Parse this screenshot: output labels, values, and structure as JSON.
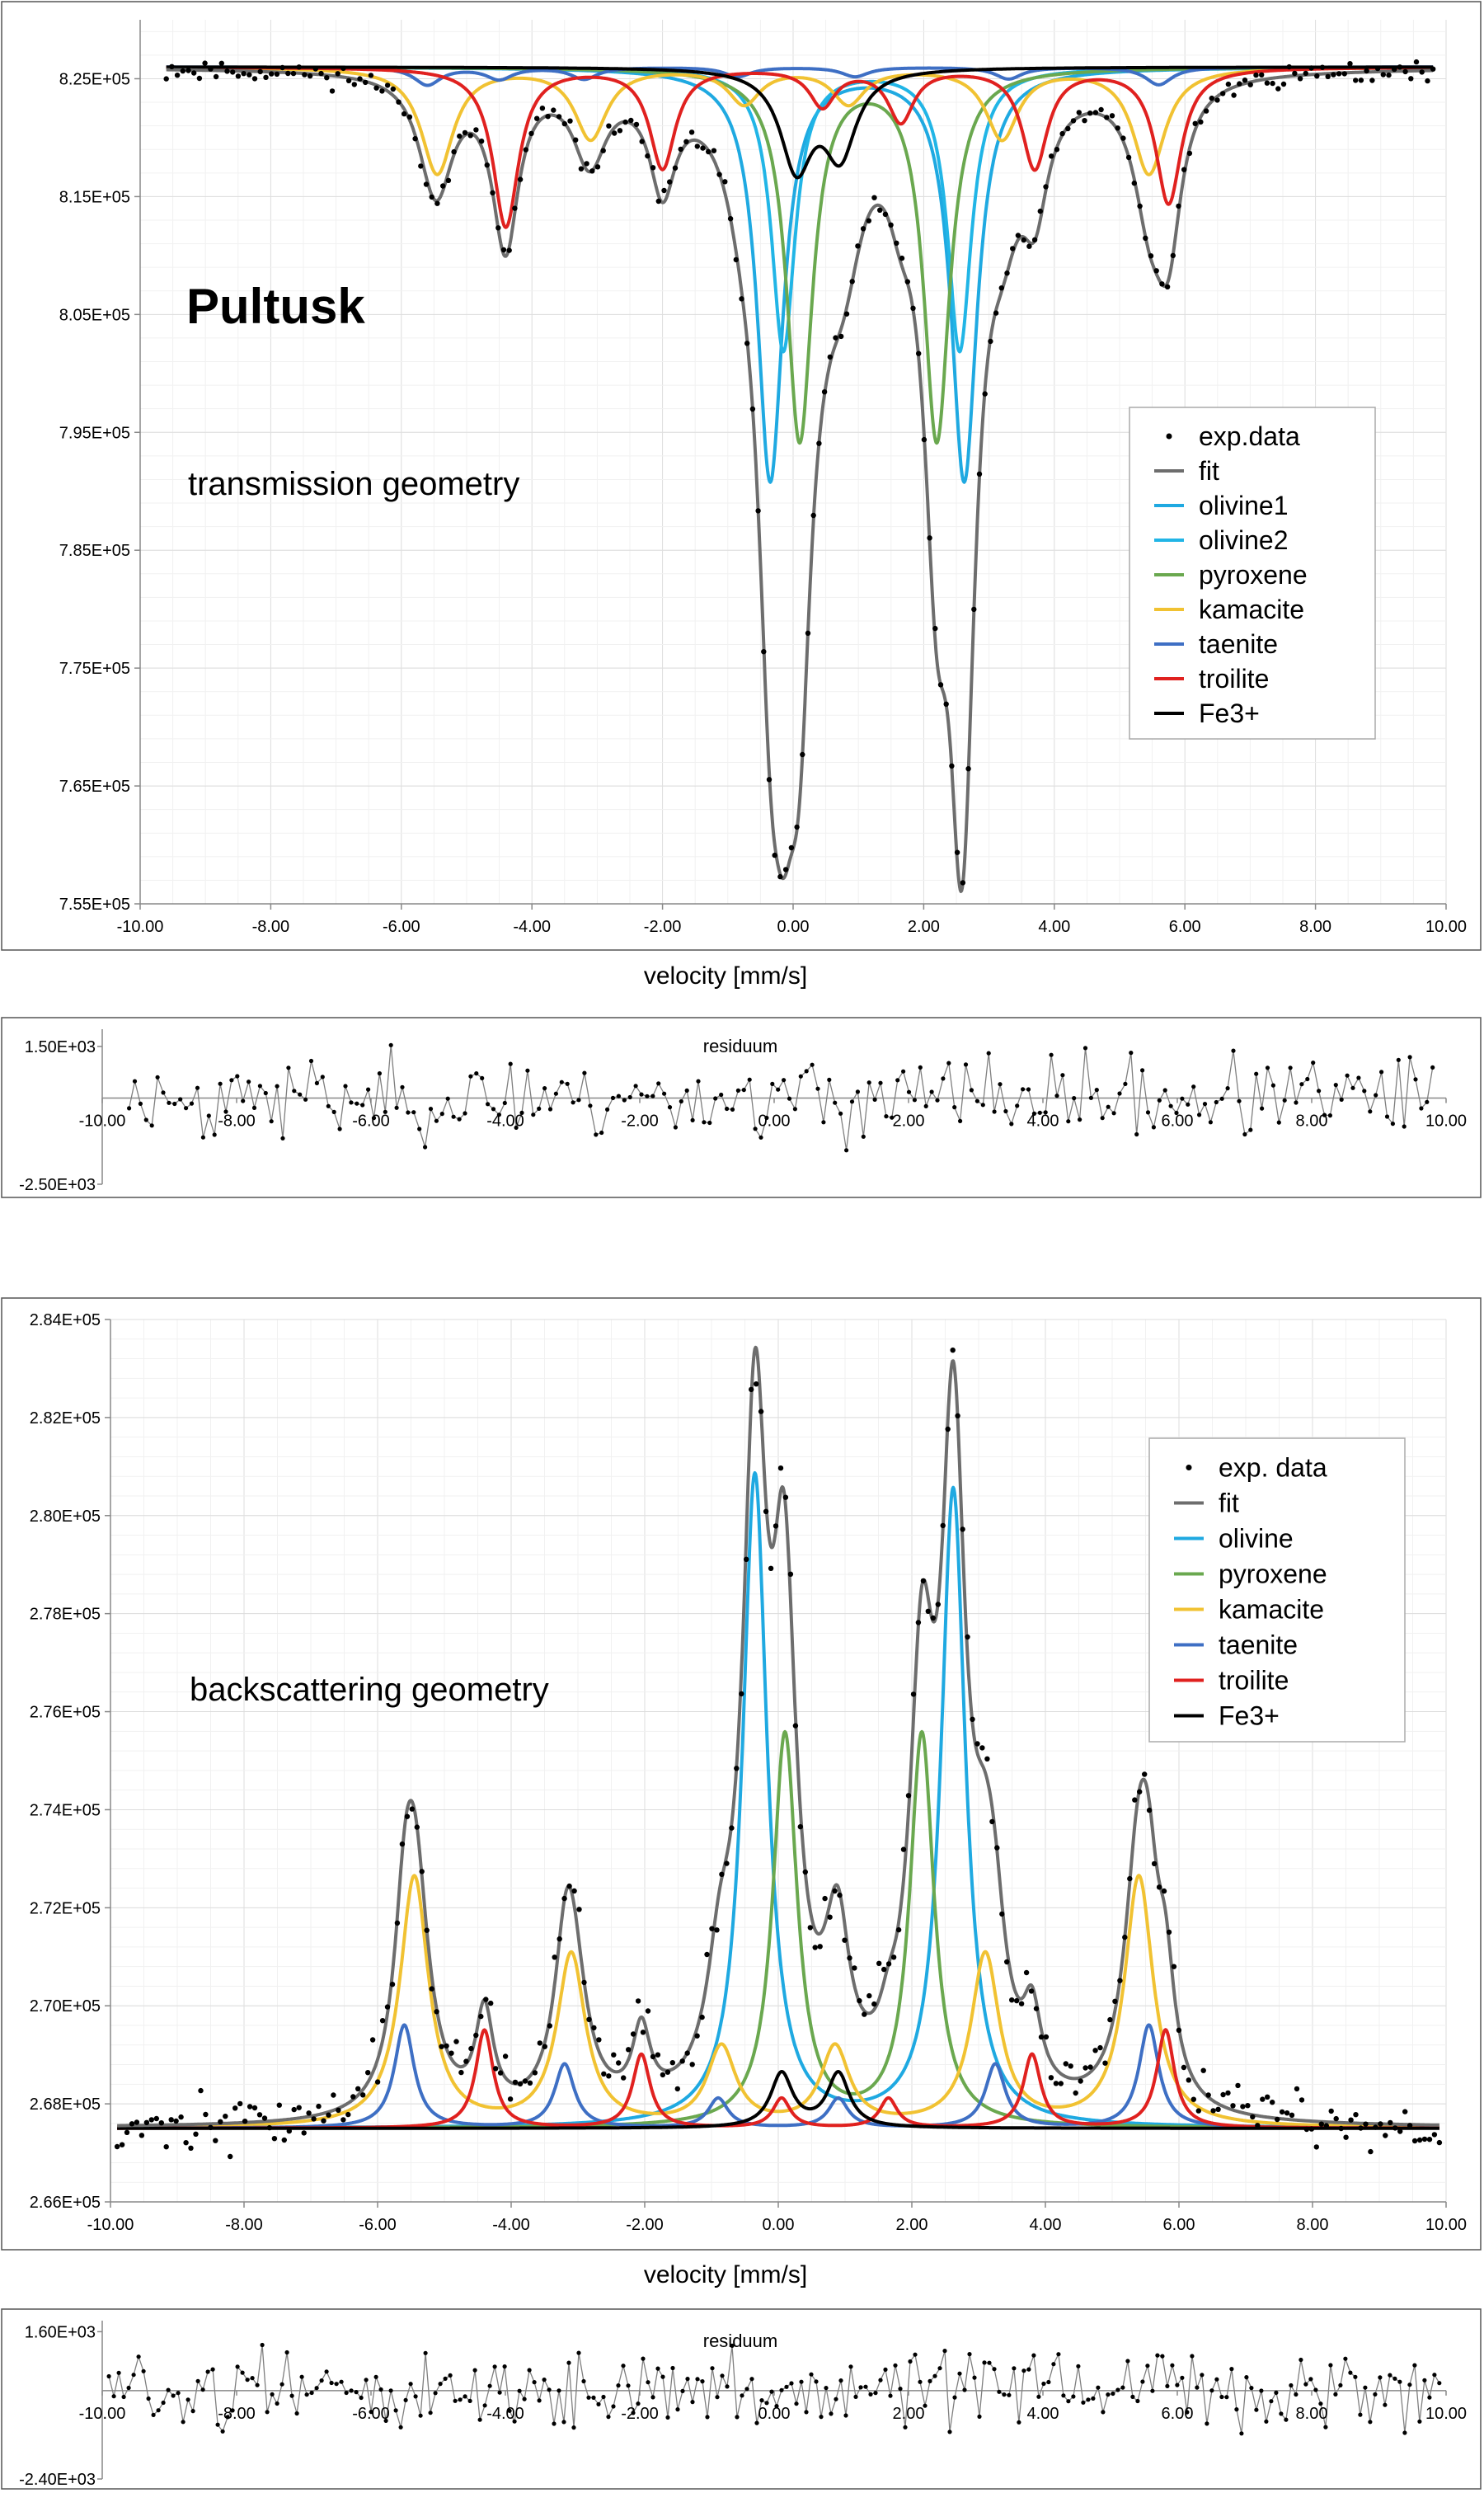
{
  "chart_data": [
    {
      "id": "transmission",
      "type": "line",
      "annotation_title": "Pultusk",
      "annotation_subtitle": "transmission geometry",
      "xlabel": "velocity [mm/s]",
      "xlim": [
        -10,
        10
      ],
      "ylim": [
        755000,
        830000
      ],
      "xticks": [
        -10,
        -8,
        -6,
        -4,
        -2,
        0,
        2,
        4,
        6,
        8,
        10
      ],
      "xtick_labels": [
        "-10.00",
        "-8.00",
        "-6.00",
        "-4.00",
        "-2.00",
        "0.00",
        "2.00",
        "4.00",
        "6.00",
        "8.00",
        "10.00"
      ],
      "yticks": [
        755000,
        765000,
        775000,
        785000,
        795000,
        805000,
        815000,
        825000
      ],
      "ytick_labels": [
        "7.55E+05",
        "7.65E+05",
        "7.75E+05",
        "7.85E+05",
        "7.95E+05",
        "8.05E+05",
        "8.15E+05",
        "8.25E+05"
      ],
      "grid": true,
      "legend_position": "right",
      "mode": "absorption",
      "baseline": 826000,
      "xrange": [
        -9.6,
        9.8
      ],
      "seed": 11,
      "noise": 600,
      "npoints": 230,
      "series": [
        {
          "name": "exp.data",
          "color": "#000000",
          "kind": "points"
        },
        {
          "name": "fit",
          "color": "#6d6d6d",
          "kind": "fit"
        },
        {
          "name": "olivine1",
          "color": "#1fa9e1",
          "kind": "component",
          "peaks": [
            [
              -0.35,
              35000,
              0.24
            ],
            [
              2.62,
              35000,
              0.24
            ]
          ]
        },
        {
          "name": "olivine2",
          "color": "#21b5e6",
          "kind": "component",
          "peaks": [
            [
              -0.15,
              24000,
              0.22
            ],
            [
              2.55,
              24000,
              0.22
            ]
          ]
        },
        {
          "name": "pyroxene",
          "color": "#6aa84f",
          "kind": "component",
          "peaks": [
            [
              0.1,
              31500,
              0.24
            ],
            [
              2.2,
              31500,
              0.24
            ]
          ]
        },
        {
          "name": "kamacite",
          "color": "#f1c232",
          "kind": "component",
          "peaks": [
            [
              -5.45,
              9000,
              0.3
            ],
            [
              -3.1,
              6000,
              0.3
            ],
            [
              -0.75,
              3000,
              0.3
            ],
            [
              0.85,
              3000,
              0.3
            ],
            [
              3.2,
              6000,
              0.3
            ],
            [
              5.45,
              9000,
              0.3
            ]
          ]
        },
        {
          "name": "taenite",
          "color": "#3e6fc4",
          "kind": "component",
          "peaks": [
            [
              -5.6,
              1500,
              0.25
            ],
            [
              -4.5,
              1000,
              0.25
            ],
            [
              -3.2,
              1000,
              0.25
            ],
            [
              -0.85,
              800,
              0.25
            ],
            [
              0.95,
              800,
              0.25
            ],
            [
              3.3,
              1000,
              0.25
            ],
            [
              5.6,
              1500,
              0.25
            ]
          ]
        },
        {
          "name": "troilite",
          "color": "#e0211f",
          "kind": "component",
          "peaks": [
            [
              -4.4,
              13500,
              0.24
            ],
            [
              -2.0,
              8500,
              0.24
            ],
            [
              0.45,
              3200,
              0.24
            ],
            [
              1.65,
              4500,
              0.24
            ],
            [
              3.7,
              8500,
              0.24
            ],
            [
              5.75,
              11500,
              0.24
            ]
          ]
        },
        {
          "name": "Fe3+",
          "color": "#000000",
          "kind": "component",
          "peaks": [
            [
              0.05,
              8200,
              0.3
            ],
            [
              0.72,
              7000,
              0.3
            ]
          ]
        }
      ]
    },
    {
      "id": "transmission-residuum",
      "type": "line",
      "label": "residuum",
      "xlim": [
        -10,
        10
      ],
      "ylim": [
        -2500,
        2000
      ],
      "xtick_labels": [
        "-10.00",
        "-8.00",
        "-6.00",
        "-4.00",
        "-2.00",
        "0.00",
        "2.00",
        "4.00",
        "6.00",
        "8.00",
        "10.00"
      ],
      "ytick_labels": [
        "1.50E+03",
        "-2.50E+03"
      ],
      "ytick_values": [
        1500,
        -2500
      ],
      "xrange": [
        -9.6,
        9.8
      ],
      "npoints": 230,
      "amplitude": 800,
      "seed": 23,
      "color": "#7f7f7f"
    },
    {
      "id": "backscattering",
      "type": "line",
      "annotation_subtitle": "backscattering geometry",
      "xlabel": "velocity [mm/s]",
      "xlim": [
        -10,
        10
      ],
      "ylim": [
        266000,
        284000
      ],
      "xticks": [
        -10,
        -8,
        -6,
        -4,
        -2,
        0,
        2,
        4,
        6,
        8,
        10
      ],
      "xtick_labels": [
        "-10.00",
        "-8.00",
        "-6.00",
        "-4.00",
        "-2.00",
        "0.00",
        "2.00",
        "4.00",
        "6.00",
        "8.00",
        "10.00"
      ],
      "yticks": [
        266000,
        268000,
        270000,
        272000,
        274000,
        276000,
        278000,
        280000,
        282000,
        284000
      ],
      "ytick_labels": [
        "2.66E+05",
        "2.68E+05",
        "2.70E+05",
        "2.72E+05",
        "2.74E+05",
        "2.76E+05",
        "2.78E+05",
        "2.80E+05",
        "2.82E+05",
        "2.84E+05"
      ],
      "grid": true,
      "legend_position": "top-right",
      "mode": "emission",
      "baseline": 267500,
      "xrange": [
        -9.9,
        9.9
      ],
      "seed": 37,
      "noise": 380,
      "npoints": 270,
      "series": [
        {
          "name": "exp. data",
          "color": "#000000",
          "kind": "points"
        },
        {
          "name": "fit",
          "color": "#6d6d6d",
          "kind": "fit"
        },
        {
          "name": "olivine",
          "color": "#1fa9e1",
          "kind": "component",
          "peaks": [
            [
              -0.35,
              13300,
              0.22
            ],
            [
              2.62,
              13000,
              0.22
            ]
          ]
        },
        {
          "name": "pyroxene",
          "color": "#6aa84f",
          "kind": "component",
          "peaks": [
            [
              0.1,
              8000,
              0.22
            ],
            [
              2.15,
              8000,
              0.22
            ]
          ]
        },
        {
          "name": "kamacite",
          "color": "#f1c232",
          "kind": "component",
          "peaks": [
            [
              -5.45,
              5100,
              0.26
            ],
            [
              -3.1,
              3500,
              0.26
            ],
            [
              -0.85,
              1600,
              0.26
            ],
            [
              0.85,
              1600,
              0.26
            ],
            [
              3.1,
              3500,
              0.26
            ],
            [
              5.4,
              5100,
              0.26
            ]
          ]
        },
        {
          "name": "taenite",
          "color": "#3e6fc4",
          "kind": "component",
          "peaks": [
            [
              -5.6,
              2100,
              0.18
            ],
            [
              -3.2,
              1300,
              0.18
            ],
            [
              -0.9,
              600,
              0.18
            ],
            [
              0.9,
              600,
              0.18
            ],
            [
              3.25,
              1300,
              0.18
            ],
            [
              5.55,
              2100,
              0.18
            ]
          ]
        },
        {
          "name": "troilite",
          "color": "#e0211f",
          "kind": "component",
          "peaks": [
            [
              -4.4,
              2000,
              0.16
            ],
            [
              -2.05,
              1500,
              0.16
            ],
            [
              0.05,
              600,
              0.16
            ],
            [
              1.65,
              600,
              0.16
            ],
            [
              3.8,
              1500,
              0.16
            ],
            [
              5.8,
              2000,
              0.16
            ]
          ]
        },
        {
          "name": "Fe3+",
          "color": "#000000",
          "kind": "component",
          "peaks": [
            [
              0.05,
              1100,
              0.2
            ],
            [
              0.9,
              1100,
              0.2
            ]
          ]
        }
      ]
    },
    {
      "id": "backscattering-residuum",
      "type": "line",
      "label": "residuum",
      "xlim": [
        -10,
        10
      ],
      "ylim": [
        -2400,
        1900
      ],
      "xtick_labels": [
        "-10.00",
        "-8.00",
        "-6.00",
        "-4.00",
        "-2.00",
        "0.00",
        "2.00",
        "4.00",
        "6.00",
        "8.00",
        "10.00"
      ],
      "ytick_labels": [
        "1.60E+03",
        "-2.40E+03"
      ],
      "ytick_values": [
        1600,
        -2400
      ],
      "xrange": [
        -9.9,
        9.9
      ],
      "npoints": 270,
      "amplitude": 700,
      "seed": 51,
      "color": "#7f7f7f"
    }
  ]
}
